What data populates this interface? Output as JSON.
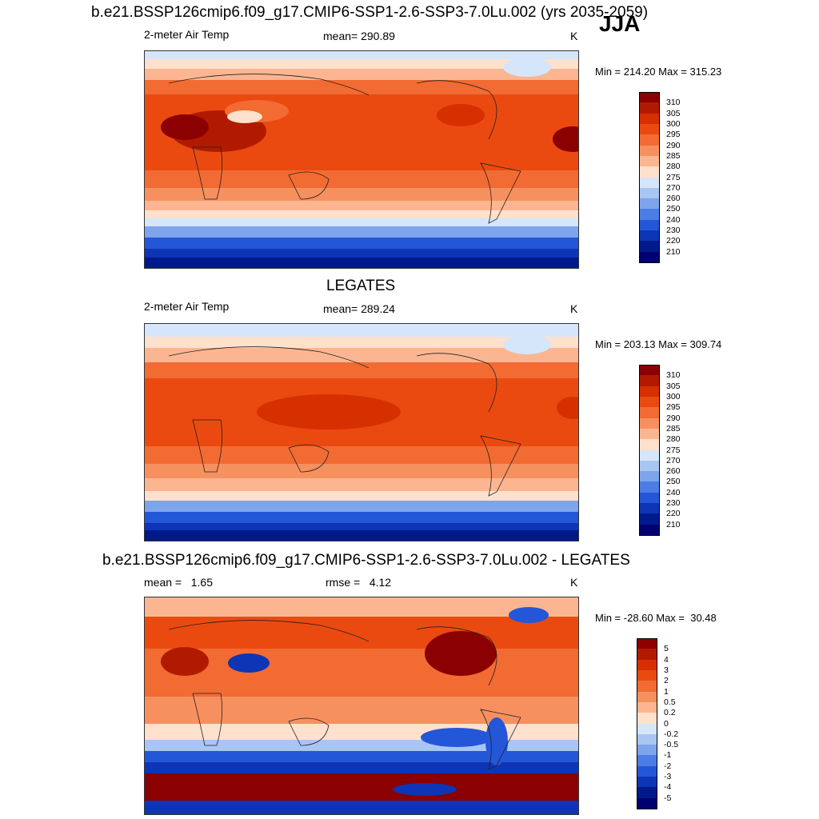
{
  "season": "JJA",
  "panels": [
    {
      "id": "model",
      "title": "b.e21.BSSP126cmip6.f09_g17.CMIP6-SSP1-2.6-SSP3-7.0Lu.002 (yrs 2035-2059)",
      "left_label": "2-meter Air Temp",
      "center_label": "mean= 290.89",
      "units": "K",
      "minmax": "Min = 214.20 Max = 315.23",
      "colorbar": {
        "labels": [
          "310",
          "305",
          "300",
          "295",
          "290",
          "285",
          "280",
          "275",
          "270",
          "260",
          "250",
          "240",
          "230",
          "220",
          "210"
        ],
        "colors": [
          "#8b0000",
          "#b21a00",
          "#d62f00",
          "#ea4a10",
          "#f26b32",
          "#f7905f",
          "#fbb691",
          "#fde1cc",
          "#d5e6fa",
          "#a9c6f3",
          "#7ea4ec",
          "#4b7de5",
          "#2456d8",
          "#0d35b5",
          "#001a8c",
          "#000070"
        ]
      }
    },
    {
      "id": "obs",
      "title": "LEGATES",
      "left_label": "2-meter Air Temp",
      "center_label": "mean= 289.24",
      "units": "K",
      "minmax": "Min = 203.13 Max = 309.74",
      "colorbar": {
        "labels": [
          "310",
          "305",
          "300",
          "295",
          "290",
          "285",
          "280",
          "275",
          "270",
          "260",
          "250",
          "240",
          "230",
          "220",
          "210"
        ],
        "colors": [
          "#8b0000",
          "#b21a00",
          "#d62f00",
          "#ea4a10",
          "#f26b32",
          "#f7905f",
          "#fbb691",
          "#fde1cc",
          "#d5e6fa",
          "#a9c6f3",
          "#7ea4ec",
          "#4b7de5",
          "#2456d8",
          "#0d35b5",
          "#001a8c",
          "#000070"
        ]
      }
    },
    {
      "id": "diff",
      "title": "b.e21.BSSP126cmip6.f09_g17.CMIP6-SSP1-2.6-SSP3-7.0Lu.002 - LEGATES",
      "left_label": "mean =   1.65",
      "center_label": "rmse =   4.12",
      "units": "K",
      "minmax": "Min = -28.60 Max =  30.48",
      "colorbar": {
        "labels": [
          "5",
          "4",
          "3",
          "2",
          "1",
          "0.5",
          "0.2",
          "0",
          "-0.2",
          "-0.5",
          "-1",
          "-2",
          "-3",
          "-4",
          "-5"
        ],
        "colors": [
          "#8b0000",
          "#b21a00",
          "#d62f00",
          "#ea4a10",
          "#f26b32",
          "#f7905f",
          "#fbb691",
          "#fde1cc",
          "#d5e6fa",
          "#a9c6f3",
          "#7ea4ec",
          "#4b7de5",
          "#2456d8",
          "#0d35b5",
          "#001a8c",
          "#000070"
        ]
      }
    }
  ]
}
